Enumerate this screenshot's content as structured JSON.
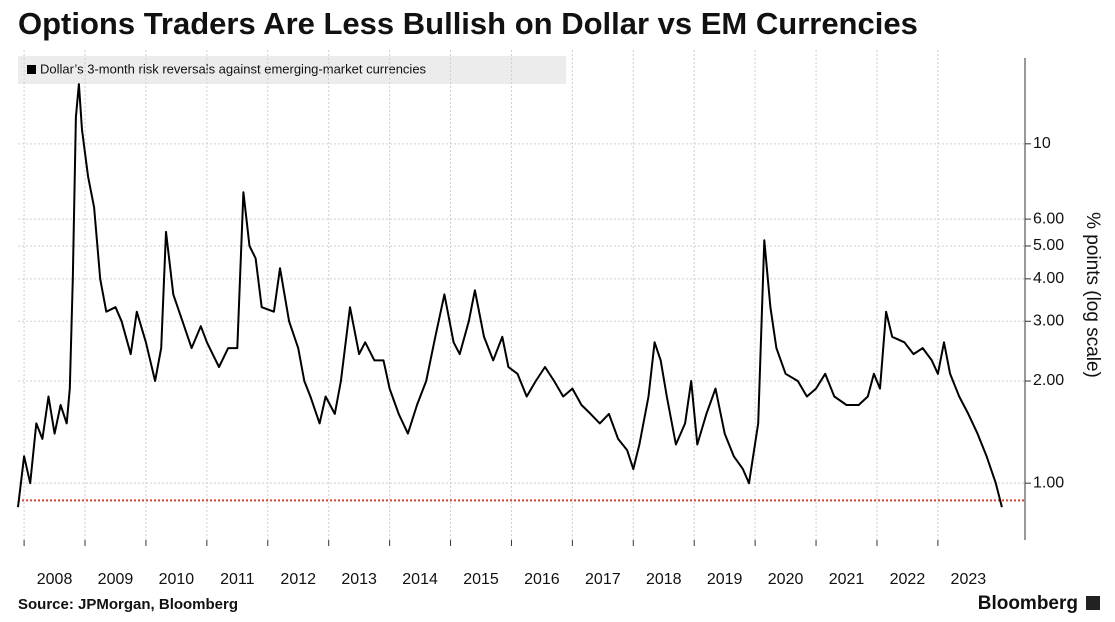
{
  "chart_data": {
    "type": "line",
    "title": "Options Traders Are Less Bullish on Dollar vs EM Currencies",
    "y_label": "% points (log scale)",
    "source": "Source: JPMorgan, Bloomberg",
    "brand": "Bloomberg",
    "log_y": true,
    "grid": true,
    "xlim": [
      2007.9,
      2024.43
    ],
    "ylim": [
      0.68,
      18.9
    ],
    "xticks": [
      2008,
      2009,
      2010,
      2011,
      2012,
      2013,
      2014,
      2015,
      2016,
      2017,
      2018,
      2019,
      2020,
      2021,
      2022,
      2023
    ],
    "yticks": [
      {
        "value": 1,
        "label": "1.00"
      },
      {
        "value": 2,
        "label": "2.00"
      },
      {
        "value": 3,
        "label": "3.00"
      },
      {
        "value": 4,
        "label": "4.00"
      },
      {
        "value": 5,
        "label": "5.00"
      },
      {
        "value": 6,
        "label": "6.00"
      },
      10
    ],
    "reference_line": {
      "value": 0.89,
      "color": "#d9432f"
    },
    "x": [
      2007.9,
      2008.0,
      2008.1,
      2008.2,
      2008.3,
      2008.4,
      2008.5,
      2008.6,
      2008.7,
      2008.75,
      2008.8,
      2008.85,
      2008.9,
      2008.95,
      2009.05,
      2009.15,
      2009.25,
      2009.35,
      2009.5,
      2009.6,
      2009.75,
      2009.85,
      2010.0,
      2010.15,
      2010.25,
      2010.33,
      2010.45,
      2010.6,
      2010.75,
      2010.9,
      2011.0,
      2011.2,
      2011.35,
      2011.5,
      2011.6,
      2011.7,
      2011.8,
      2011.9,
      2012.1,
      2012.2,
      2012.35,
      2012.5,
      2012.6,
      2012.7,
      2012.85,
      2012.95,
      2013.1,
      2013.2,
      2013.35,
      2013.5,
      2013.6,
      2013.75,
      2013.9,
      2014.0,
      2014.15,
      2014.3,
      2014.45,
      2014.6,
      2014.75,
      2014.9,
      2015.05,
      2015.15,
      2015.3,
      2015.4,
      2015.55,
      2015.7,
      2015.85,
      2015.95,
      2016.1,
      2016.25,
      2016.4,
      2016.55,
      2016.7,
      2016.85,
      2017.0,
      2017.15,
      2017.3,
      2017.45,
      2017.6,
      2017.75,
      2017.9,
      2018.0,
      2018.1,
      2018.25,
      2018.35,
      2018.45,
      2018.55,
      2018.7,
      2018.85,
      2018.95,
      2019.05,
      2019.2,
      2019.35,
      2019.5,
      2019.65,
      2019.8,
      2019.9,
      2020.05,
      2020.15,
      2020.25,
      2020.35,
      2020.5,
      2020.7,
      2020.85,
      2021.0,
      2021.15,
      2021.3,
      2021.5,
      2021.7,
      2021.85,
      2021.95,
      2022.05,
      2022.15,
      2022.25,
      2022.45,
      2022.6,
      2022.75,
      2022.9,
      2023.0,
      2023.1,
      2023.2,
      2023.35,
      2023.5,
      2023.65,
      2023.8,
      2023.95,
      2024.05
    ],
    "series": [
      {
        "name": "Dollar’s 3-month risk reversals against emerging-market currencies",
        "color": "#000000",
        "values": [
          0.85,
          1.2,
          1.0,
          1.5,
          1.35,
          1.8,
          1.4,
          1.7,
          1.5,
          1.9,
          4,
          12,
          15,
          11,
          8,
          6.5,
          4,
          3.2,
          3.3,
          3.0,
          2.4,
          3.2,
          2.6,
          2.0,
          2.5,
          5.5,
          3.6,
          3.0,
          2.5,
          2.9,
          2.6,
          2.2,
          2.5,
          2.5,
          7.2,
          5.0,
          4.6,
          3.3,
          3.2,
          4.3,
          3.0,
          2.5,
          2.0,
          1.8,
          1.5,
          1.8,
          1.6,
          2.0,
          3.3,
          2.4,
          2.6,
          2.3,
          2.3,
          1.9,
          1.6,
          1.4,
          1.7,
          2.0,
          2.7,
          3.6,
          2.6,
          2.4,
          3.0,
          3.7,
          2.7,
          2.3,
          2.7,
          2.2,
          2.1,
          1.8,
          2.0,
          2.2,
          2.0,
          1.8,
          1.9,
          1.7,
          1.6,
          1.5,
          1.6,
          1.35,
          1.25,
          1.1,
          1.3,
          1.8,
          2.6,
          2.3,
          1.8,
          1.3,
          1.5,
          2.0,
          1.3,
          1.6,
          1.9,
          1.4,
          1.2,
          1.1,
          1.0,
          1.5,
          5.2,
          3.3,
          2.5,
          2.1,
          2.0,
          1.8,
          1.9,
          2.1,
          1.8,
          1.7,
          1.7,
          1.8,
          2.1,
          1.9,
          3.2,
          2.7,
          2.6,
          2.4,
          2.5,
          2.3,
          2.1,
          2.6,
          2.1,
          1.8,
          1.6,
          1.4,
          1.2,
          1.0,
          0.85
        ]
      }
    ]
  }
}
